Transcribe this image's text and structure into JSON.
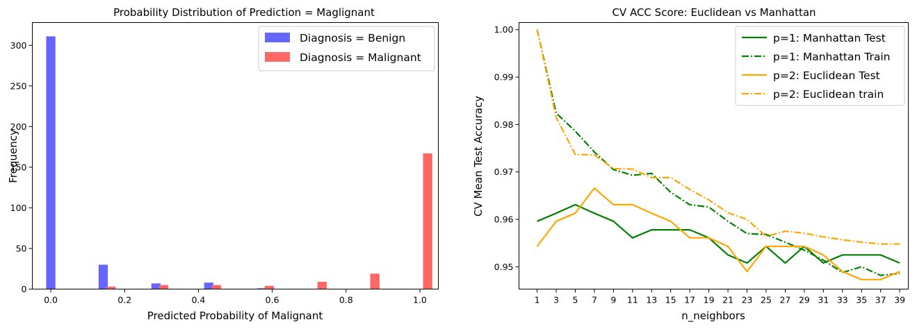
{
  "chart_data": [
    {
      "type": "bar",
      "title": "Probability Distribution of Prediction = Maglignant",
      "xlabel": "Predicted Probability of Malignant",
      "ylabel": "Frequency",
      "xlim": [
        -0.05,
        1.05
      ],
      "ylim": [
        0,
        328
      ],
      "xticks": [
        0.0,
        0.2,
        0.4,
        0.6,
        0.8,
        1.0
      ],
      "xtick_labels": [
        "0.0",
        "0.2",
        "0.4",
        "0.6",
        "0.8",
        "1.0"
      ],
      "yticks": [
        0,
        50,
        100,
        150,
        200,
        250,
        300
      ],
      "legend_position": "top-right",
      "bin_width": 0.025,
      "series": [
        {
          "name": "Diagnosis = Benign",
          "color": "#6666ff",
          "x": [
            0.0,
            0.142,
            0.285,
            0.428,
            0.571,
            0.714,
            0.857,
            1.0
          ],
          "values": [
            311,
            30,
            7,
            8,
            1,
            0,
            0,
            0
          ]
        },
        {
          "name": "Diagnosis = Malignant",
          "color": "#ff6666",
          "x": [
            0.021,
            0.163,
            0.306,
            0.449,
            0.592,
            0.735,
            0.878,
            1.021
          ],
          "values": [
            0,
            3,
            5,
            5,
            4,
            9,
            19,
            167
          ]
        }
      ]
    },
    {
      "type": "line",
      "title": "CV ACC Score: Euclidean vs Manhattan",
      "xlabel": "n_neighbors",
      "ylabel": "CV Mean Test Accuracy",
      "xlim": [
        -0.9,
        39.9
      ],
      "ylim": [
        0.9453,
        1.0015
      ],
      "xticks": [
        1,
        3,
        5,
        7,
        9,
        11,
        13,
        15,
        17,
        19,
        21,
        23,
        25,
        27,
        29,
        31,
        33,
        35,
        37,
        39
      ],
      "yticks": [
        0.95,
        0.96,
        0.97,
        0.98,
        0.99,
        1.0
      ],
      "ytick_labels": [
        "0.95",
        "0.96",
        "0.97",
        "0.98",
        "0.99",
        "1.00"
      ],
      "legend_position": "top-right",
      "x": [
        1,
        3,
        5,
        7,
        9,
        11,
        13,
        15,
        17,
        19,
        21,
        23,
        25,
        27,
        29,
        31,
        33,
        35,
        37,
        39
      ],
      "series": [
        {
          "name": "p=1: Manhattan Test",
          "color": "#008000",
          "style": "solid",
          "values": [
            0.9596,
            0.9613,
            0.9631,
            0.9613,
            0.9596,
            0.9561,
            0.9578,
            0.9578,
            0.9578,
            0.9561,
            0.9525,
            0.9508,
            0.9543,
            0.9508,
            0.9543,
            0.9508,
            0.9525,
            0.9525,
            0.9525,
            0.9508
          ]
        },
        {
          "name": "p=1: Manhattan Train",
          "color": "#008000",
          "style": "dashdot",
          "values": [
            1.0,
            0.9824,
            0.9786,
            0.9742,
            0.9705,
            0.9693,
            0.9697,
            0.9657,
            0.9631,
            0.9626,
            0.9596,
            0.957,
            0.9568,
            0.9552,
            0.9535,
            0.9514,
            0.9488,
            0.95,
            0.9482,
            0.9486
          ]
        },
        {
          "name": "p=2: Euclidean Test",
          "color": "#ffa500",
          "style": "solid",
          "values": [
            0.9543,
            0.9596,
            0.9613,
            0.9666,
            0.9631,
            0.9631,
            0.9613,
            0.9596,
            0.9561,
            0.9561,
            0.9543,
            0.949,
            0.9543,
            0.9543,
            0.9543,
            0.9525,
            0.949,
            0.9473,
            0.9473,
            0.949
          ]
        },
        {
          "name": "p=2: Euclidean train",
          "color": "#ffa500",
          "style": "dashdot",
          "values": [
            1.0,
            0.9815,
            0.9737,
            0.9736,
            0.9707,
            0.9706,
            0.9688,
            0.9688,
            0.9663,
            0.9641,
            0.9614,
            0.96,
            0.9564,
            0.9575,
            0.9571,
            0.9563,
            0.9557,
            0.9552,
            0.9548,
            0.9548
          ]
        }
      ]
    }
  ]
}
